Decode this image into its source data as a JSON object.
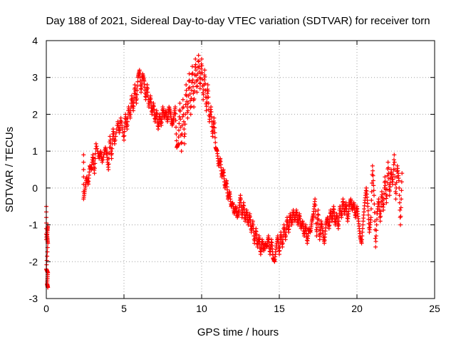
{
  "chart_data": {
    "type": "scatter",
    "title": "Day 188 of 2021, Sidereal Day-to-day VTEC variation (SDTVAR) for receiver torn",
    "xlabel": "GPS time / hours",
    "ylabel": "SDTVAR / TECUs",
    "xlim": [
      0,
      25
    ],
    "ylim": [
      -3,
      4
    ],
    "xticks": [
      0,
      5,
      10,
      15,
      20,
      25
    ],
    "yticks": [
      -3,
      -2,
      -1,
      0,
      1,
      2,
      3,
      4
    ],
    "grid": true,
    "marker": "+",
    "series": [
      {
        "name": "SDTVAR",
        "color": "#ff0000",
        "points": [
          [
            0.0,
            -0.5
          ],
          [
            0.0,
            -1.4
          ],
          [
            0.1,
            -1.0
          ],
          [
            0.05,
            -1.3
          ],
          [
            0.1,
            -1.5
          ],
          [
            0.0,
            -2.2
          ],
          [
            0.1,
            -2.3
          ],
          [
            0.05,
            -2.6
          ],
          [
            0.1,
            -2.7
          ],
          [
            2.4,
            0.9
          ],
          [
            2.4,
            -0.3
          ],
          [
            2.5,
            0.0
          ],
          [
            2.6,
            0.3
          ],
          [
            2.7,
            0.1
          ],
          [
            2.8,
            0.6
          ],
          [
            2.9,
            0.5
          ],
          [
            3.0,
            0.9
          ],
          [
            3.1,
            0.4
          ],
          [
            3.2,
            1.2
          ],
          [
            3.4,
            0.8
          ],
          [
            3.5,
            1.0
          ],
          [
            3.6,
            0.7
          ],
          [
            3.8,
            1.1
          ],
          [
            3.9,
            0.9
          ],
          [
            4.0,
            0.5
          ],
          [
            4.1,
            1.4
          ],
          [
            4.2,
            0.8
          ],
          [
            4.3,
            1.6
          ],
          [
            4.4,
            1.2
          ],
          [
            4.6,
            1.8
          ],
          [
            4.7,
            1.5
          ],
          [
            4.8,
            1.9
          ],
          [
            5.0,
            1.3
          ],
          [
            5.1,
            2.0
          ],
          [
            5.2,
            1.6
          ],
          [
            5.3,
            2.2
          ],
          [
            5.4,
            1.9
          ],
          [
            5.5,
            2.5
          ],
          [
            5.6,
            2.1
          ],
          [
            5.7,
            2.8
          ],
          [
            5.8,
            2.3
          ],
          [
            5.9,
            3.0
          ],
          [
            6.0,
            3.2
          ],
          [
            6.1,
            2.6
          ],
          [
            6.2,
            3.1
          ],
          [
            6.3,
            2.9
          ],
          [
            6.4,
            2.4
          ],
          [
            6.5,
            2.8
          ],
          [
            6.6,
            2.2
          ],
          [
            6.7,
            2.5
          ],
          [
            6.8,
            2.0
          ],
          [
            6.9,
            2.3
          ],
          [
            7.0,
            1.8
          ],
          [
            7.1,
            2.1
          ],
          [
            7.2,
            1.6
          ],
          [
            7.3,
            2.0
          ],
          [
            7.4,
            1.7
          ],
          [
            7.5,
            2.2
          ],
          [
            7.6,
            1.9
          ],
          [
            7.7,
            2.1
          ],
          [
            7.8,
            1.8
          ],
          [
            7.9,
            2.2
          ],
          [
            8.0,
            2.0
          ],
          [
            8.1,
            1.7
          ],
          [
            8.2,
            1.9
          ],
          [
            8.3,
            2.2
          ],
          [
            8.4,
            1.1
          ],
          [
            8.5,
            1.2
          ],
          [
            8.6,
            2.3
          ],
          [
            8.7,
            1.0
          ],
          [
            8.8,
            2.4
          ],
          [
            8.9,
            1.2
          ],
          [
            9.0,
            2.8
          ],
          [
            9.1,
            1.9
          ],
          [
            9.2,
            3.1
          ],
          [
            9.3,
            2.0
          ],
          [
            9.4,
            3.3
          ],
          [
            9.5,
            2.2
          ],
          [
            9.6,
            3.5
          ],
          [
            9.7,
            2.6
          ],
          [
            9.8,
            3.6
          ],
          [
            9.9,
            2.7
          ],
          [
            10.0,
            3.5
          ],
          [
            10.1,
            2.4
          ],
          [
            10.2,
            3.2
          ],
          [
            10.3,
            2.1
          ],
          [
            10.4,
            2.8
          ],
          [
            10.5,
            1.8
          ],
          [
            10.6,
            2.2
          ],
          [
            10.7,
            1.4
          ],
          [
            10.8,
            1.9
          ],
          [
            10.9,
            1.1
          ],
          [
            11.0,
            1.0
          ],
          [
            11.1,
            0.6
          ],
          [
            11.2,
            0.8
          ],
          [
            11.3,
            0.3
          ],
          [
            11.4,
            0.5
          ],
          [
            11.5,
            0.0
          ],
          [
            11.6,
            0.2
          ],
          [
            11.7,
            -0.3
          ],
          [
            11.8,
            -0.1
          ],
          [
            11.9,
            -0.5
          ],
          [
            12.0,
            -0.4
          ],
          [
            12.1,
            -0.7
          ],
          [
            12.2,
            -0.5
          ],
          [
            12.3,
            -0.8
          ],
          [
            12.4,
            -0.6
          ],
          [
            12.5,
            -0.2
          ],
          [
            12.6,
            -0.8
          ],
          [
            12.7,
            -0.4
          ],
          [
            12.8,
            -0.9
          ],
          [
            12.9,
            -0.6
          ],
          [
            13.0,
            -1.0
          ],
          [
            13.1,
            -0.7
          ],
          [
            13.2,
            -1.2
          ],
          [
            13.3,
            -0.9
          ],
          [
            13.4,
            -1.5
          ],
          [
            13.5,
            -1.1
          ],
          [
            13.6,
            -1.6
          ],
          [
            13.7,
            -1.3
          ],
          [
            13.8,
            -1.8
          ],
          [
            13.9,
            -1.4
          ],
          [
            14.0,
            -1.7
          ],
          [
            14.1,
            -1.5
          ],
          [
            14.2,
            -1.6
          ],
          [
            14.3,
            -1.3
          ],
          [
            14.4,
            -1.8
          ],
          [
            14.5,
            -1.4
          ],
          [
            14.6,
            -1.9
          ],
          [
            14.7,
            -2.0
          ],
          [
            14.8,
            -1.6
          ],
          [
            14.9,
            -1.3
          ],
          [
            15.0,
            -1.8
          ],
          [
            15.1,
            -1.2
          ],
          [
            15.2,
            -1.6
          ],
          [
            15.3,
            -1.0
          ],
          [
            15.4,
            -1.4
          ],
          [
            15.5,
            -0.8
          ],
          [
            15.6,
            -1.2
          ],
          [
            15.7,
            -0.7
          ],
          [
            15.8,
            -1.0
          ],
          [
            15.9,
            -0.6
          ],
          [
            16.0,
            -0.9
          ],
          [
            16.1,
            -0.6
          ],
          [
            16.2,
            -1.0
          ],
          [
            16.3,
            -0.7
          ],
          [
            16.4,
            -1.1
          ],
          [
            16.5,
            -0.9
          ],
          [
            16.6,
            -1.3
          ],
          [
            16.7,
            -1.0
          ],
          [
            16.8,
            -1.5
          ],
          [
            16.9,
            -1.1
          ],
          [
            17.0,
            -1.2
          ],
          [
            17.1,
            -0.9
          ],
          [
            17.2,
            -0.7
          ],
          [
            17.3,
            -0.3
          ],
          [
            17.4,
            -1.3
          ],
          [
            17.5,
            -0.6
          ],
          [
            17.6,
            -1.4
          ],
          [
            17.7,
            -0.9
          ],
          [
            17.8,
            -1.2
          ],
          [
            17.9,
            -1.5
          ],
          [
            18.0,
            -1.0
          ],
          [
            18.1,
            -0.8
          ],
          [
            18.2,
            -1.1
          ],
          [
            18.3,
            -0.6
          ],
          [
            18.4,
            -0.9
          ],
          [
            18.5,
            -0.5
          ],
          [
            18.6,
            -1.0
          ],
          [
            18.7,
            -0.7
          ],
          [
            18.8,
            -1.1
          ],
          [
            18.9,
            -0.5
          ],
          [
            19.0,
            -0.8
          ],
          [
            19.1,
            -0.3
          ],
          [
            19.2,
            -0.7
          ],
          [
            19.3,
            -0.4
          ],
          [
            19.4,
            -0.9
          ],
          [
            19.5,
            -0.5
          ],
          [
            19.6,
            -0.3
          ],
          [
            19.7,
            -0.6
          ],
          [
            19.8,
            -0.4
          ],
          [
            19.9,
            -0.8
          ],
          [
            20.0,
            -0.5
          ],
          [
            20.1,
            -0.9
          ],
          [
            20.2,
            -1.3
          ],
          [
            20.3,
            -1.5
          ],
          [
            20.4,
            -0.9
          ],
          [
            20.5,
            -0.4
          ],
          [
            20.6,
            0.0
          ],
          [
            20.7,
            -0.5
          ],
          [
            20.8,
            -1.2
          ],
          [
            20.9,
            -0.8
          ],
          [
            21.0,
            0.6
          ],
          [
            21.1,
            -0.2
          ],
          [
            21.2,
            -1.6
          ],
          [
            21.3,
            -0.7
          ],
          [
            21.4,
            -0.3
          ],
          [
            21.5,
            -0.9
          ],
          [
            21.6,
            -0.1
          ],
          [
            21.7,
            -0.6
          ],
          [
            21.8,
            0.3
          ],
          [
            21.9,
            -0.4
          ],
          [
            22.0,
            0.7
          ],
          [
            22.1,
            -0.2
          ],
          [
            22.2,
            0.5
          ],
          [
            22.3,
            0.1
          ],
          [
            22.4,
            0.9
          ],
          [
            22.5,
            -0.3
          ],
          [
            22.6,
            0.6
          ],
          [
            22.7,
            0.2
          ],
          [
            22.8,
            -1.0
          ],
          [
            22.9,
            0.4
          ]
        ]
      }
    ]
  }
}
